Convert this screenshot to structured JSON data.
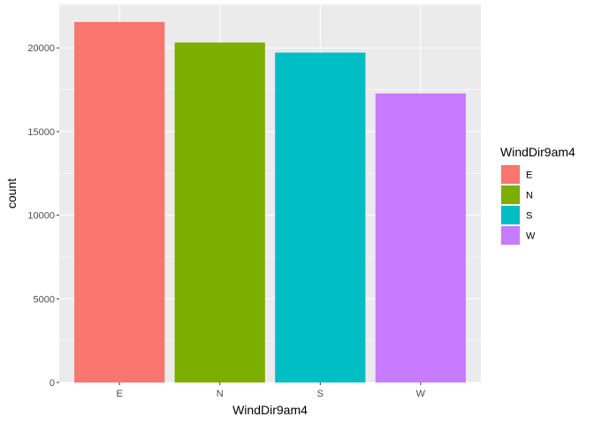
{
  "chart_data": {
    "type": "bar",
    "categories": [
      "E",
      "N",
      "S",
      "W"
    ],
    "values": [
      21550,
      20320,
      19720,
      17280
    ],
    "xlabel": "WindDir9am4",
    "ylabel": "count",
    "ylim": [
      0,
      22600
    ],
    "yticks": [
      0,
      5000,
      10000,
      15000,
      20000
    ],
    "ytick_labels": [
      "0",
      "5000",
      "10000",
      "15000",
      "20000"
    ],
    "grid": true,
    "legend": {
      "title": "WindDir9am4",
      "position": "right",
      "entries": [
        "E",
        "N",
        "S",
        "W"
      ]
    },
    "colors": [
      "#F8766D",
      "#7CAE00",
      "#00BFC4",
      "#C77CFF"
    ],
    "panel_background": "#EBEBEB",
    "grid_color": "#FFFFFF"
  }
}
